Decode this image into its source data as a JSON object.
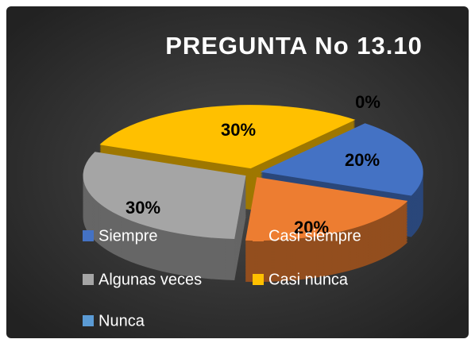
{
  "chart_data": {
    "type": "pie",
    "title": "PREGUNTA No 13.10",
    "categories": [
      "Siempre",
      "Casi siempre",
      "Algunas veces",
      "Casi nunca",
      "Nunca"
    ],
    "values": [
      20,
      20,
      30,
      30,
      0
    ],
    "value_labels": [
      "20%",
      "20%",
      "30%",
      "30%",
      "0%"
    ],
    "colors": [
      "#4472c4",
      "#ed7d31",
      "#a5a5a5",
      "#ffc000",
      "#5b9bd5"
    ],
    "legend": "bottom"
  }
}
